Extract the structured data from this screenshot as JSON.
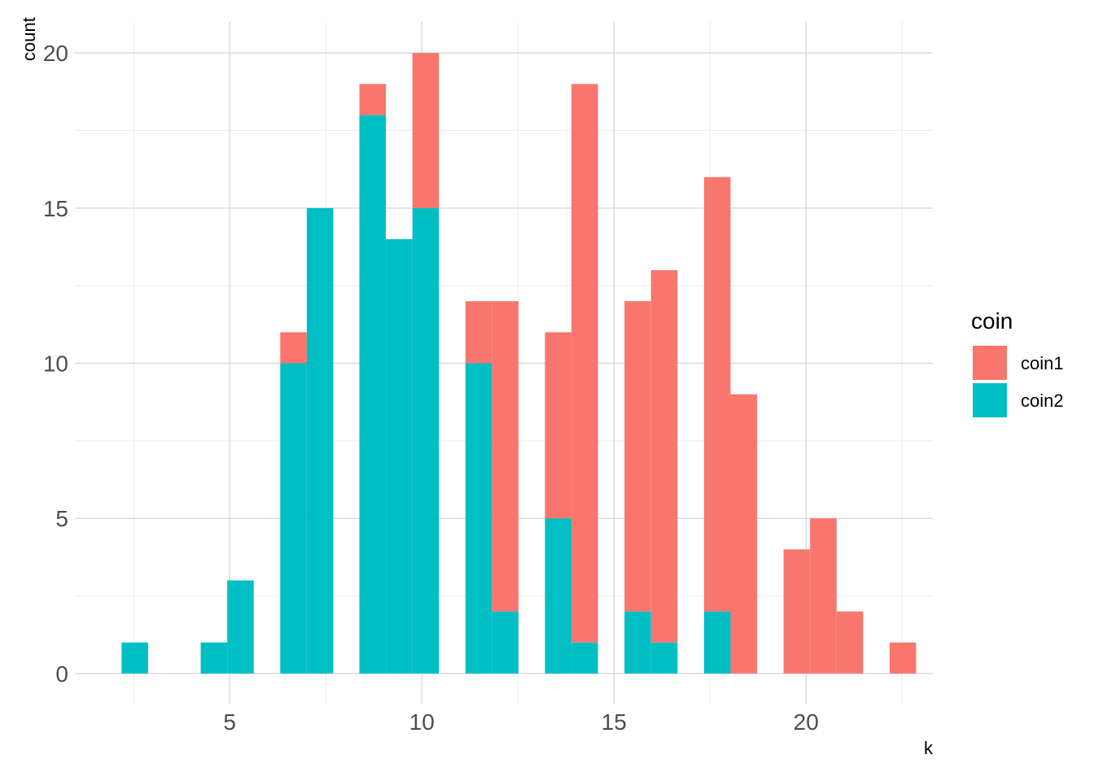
{
  "chart_data": {
    "type": "bar",
    "subtype": "stacked-histogram",
    "xlabel": "k",
    "ylabel": "count",
    "xlim": [
      0.97,
      23.3
    ],
    "ylim": [
      -1,
      21
    ],
    "x_ticks": [
      5,
      10,
      15,
      20
    ],
    "x_tick_labels": [
      "5",
      "10",
      "15",
      "20"
    ],
    "y_ticks": [
      0,
      5,
      10,
      15,
      20
    ],
    "y_tick_labels": [
      "0",
      "5",
      "10",
      "15",
      "20"
    ],
    "bin_width": 0.69,
    "grid": true,
    "legend": {
      "title": "coin",
      "position": "right",
      "entries": [
        {
          "name": "coin1",
          "color": "#F8766D"
        },
        {
          "name": "coin2",
          "color": "#00BFC4"
        }
      ]
    },
    "series": [
      {
        "name": "coin1",
        "color": "#F8766D",
        "x": [
          6.66,
          8.72,
          10.1,
          11.48,
          12.17,
          13.55,
          14.24,
          15.62,
          16.31,
          17.69,
          18.38,
          19.76,
          20.45,
          21.14,
          22.52
        ],
        "values": [
          1,
          1,
          5,
          2,
          10,
          6,
          18,
          10,
          12,
          14,
          9,
          4,
          5,
          2,
          1
        ]
      },
      {
        "name": "coin2",
        "color": "#00BFC4",
        "x": [
          2.53,
          4.59,
          5.28,
          6.66,
          7.35,
          8.72,
          9.41,
          10.1,
          11.48,
          12.17,
          13.55,
          14.24,
          15.62,
          16.31,
          17.69
        ],
        "values": [
          1,
          1,
          3,
          10,
          15,
          18,
          14,
          15,
          10,
          2,
          5,
          1,
          2,
          1,
          2
        ]
      }
    ]
  }
}
